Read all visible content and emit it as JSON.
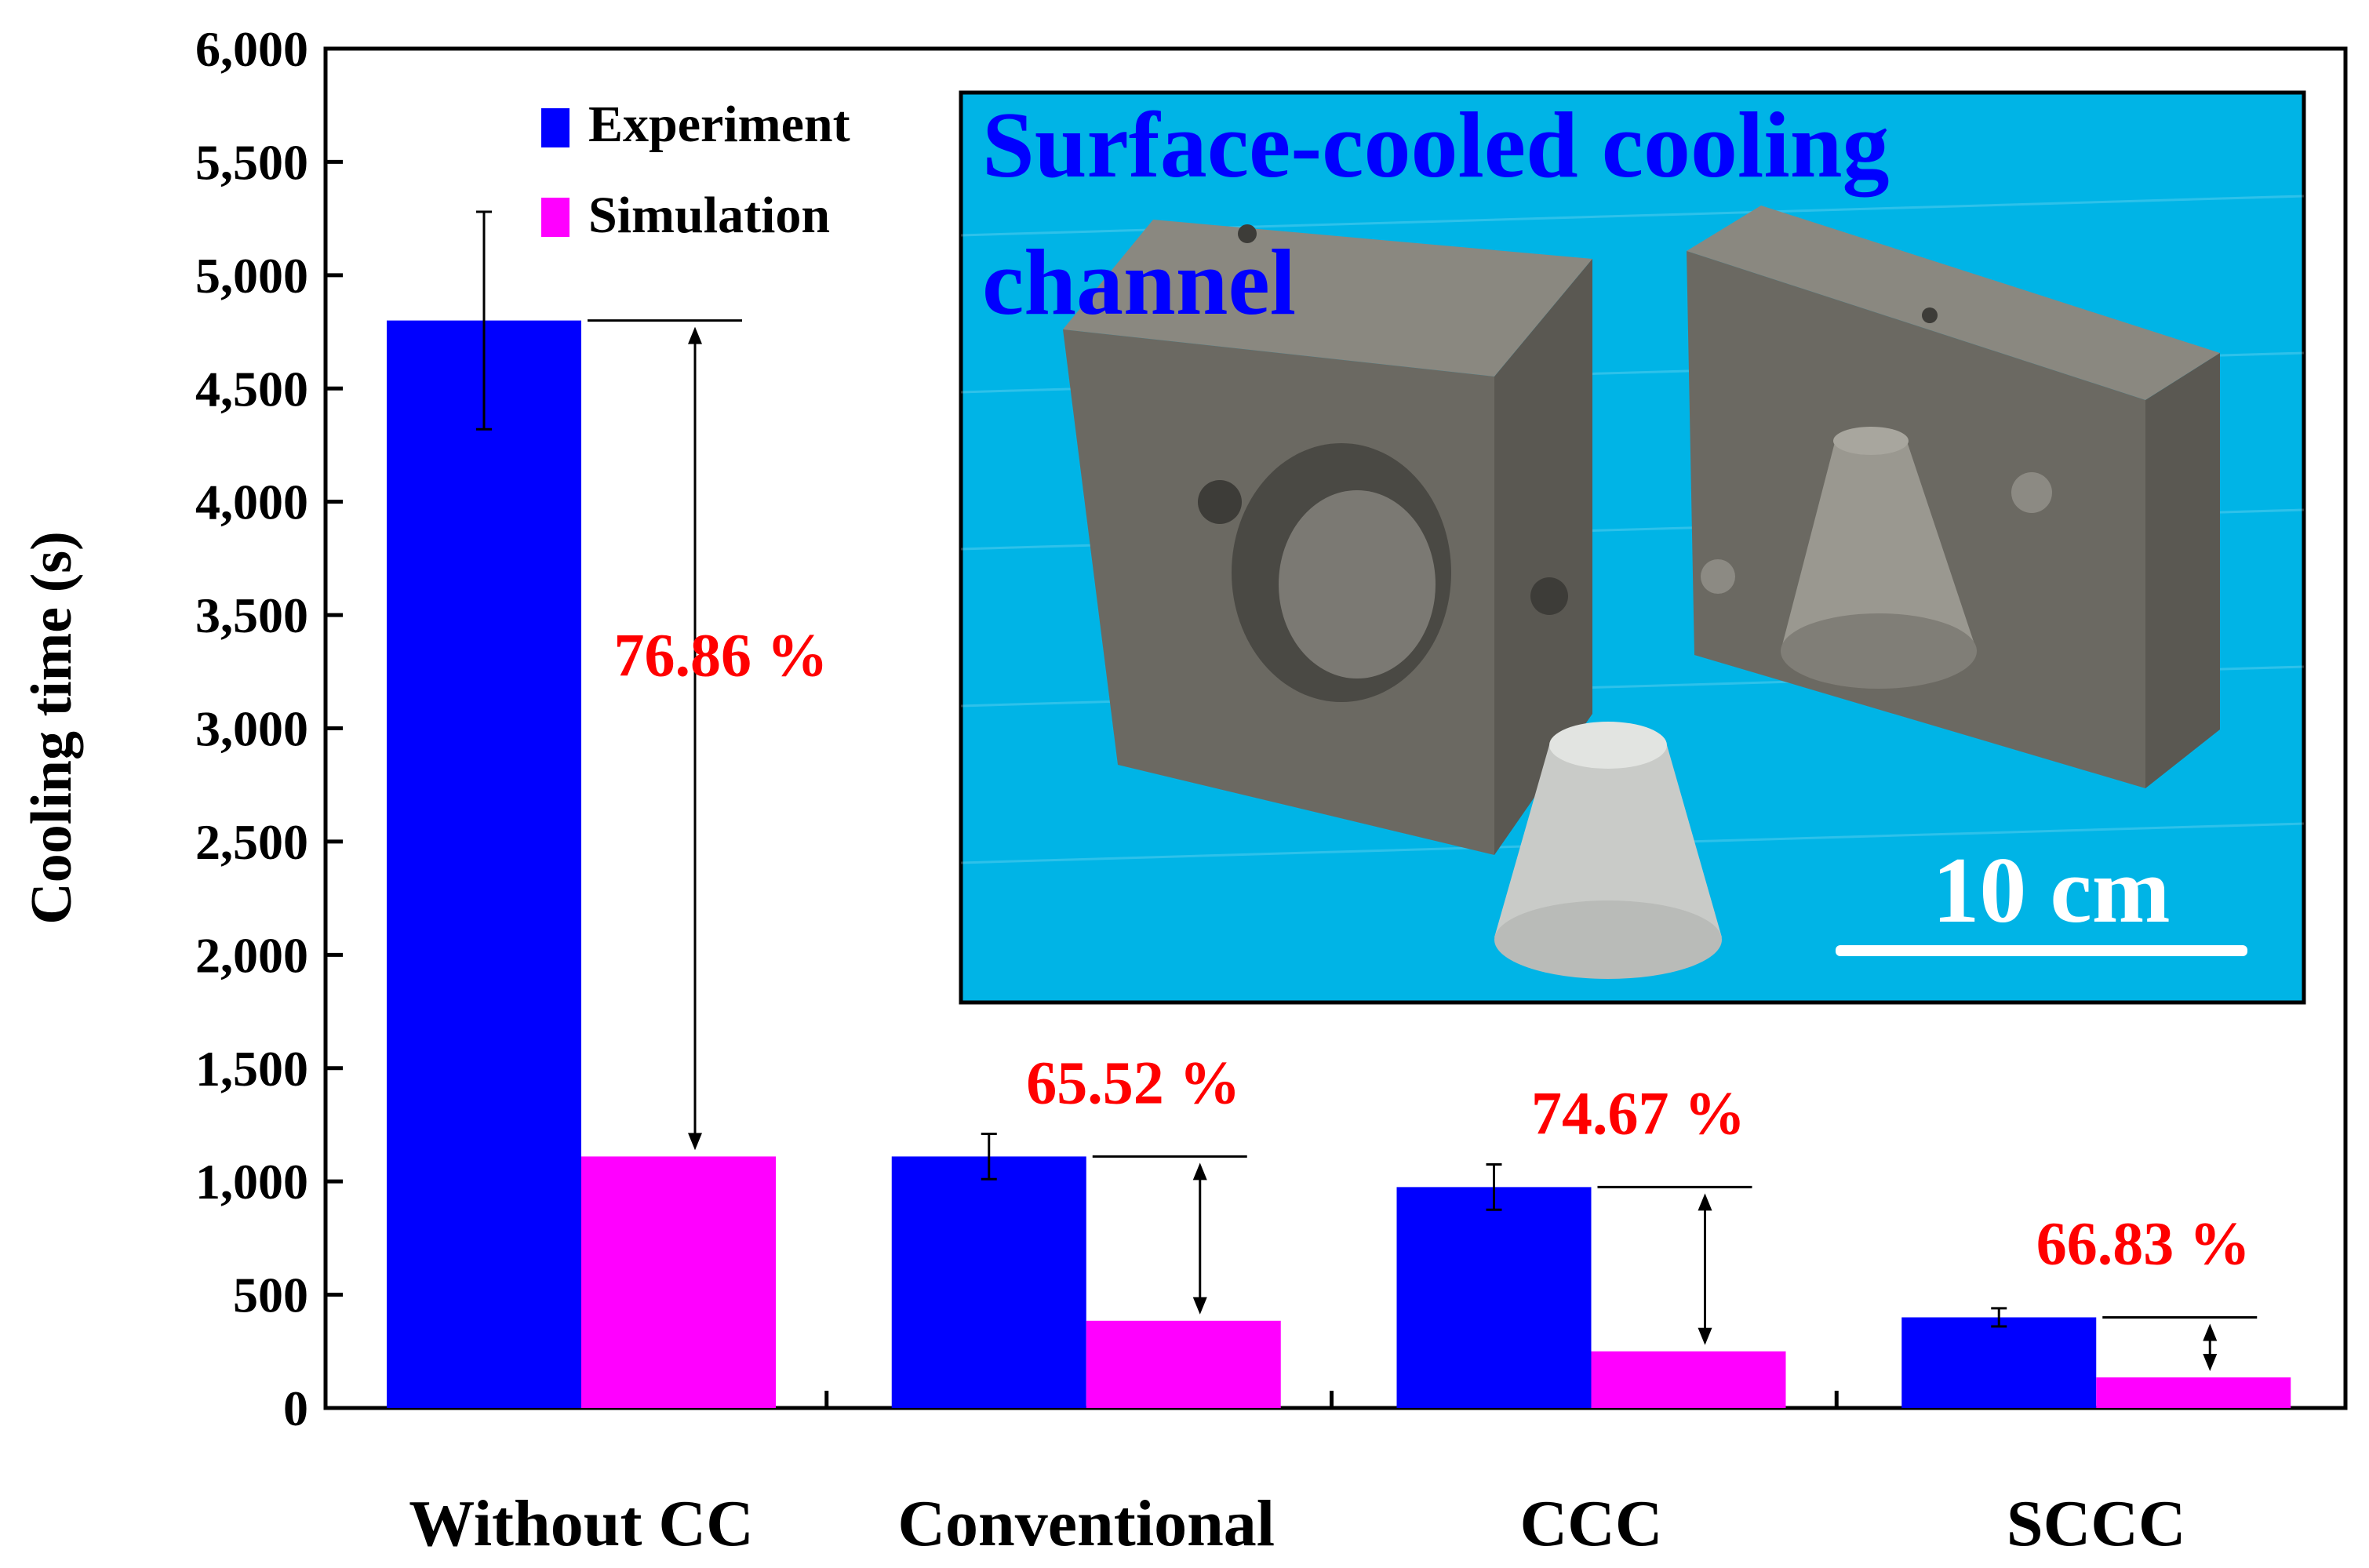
{
  "chart_data": {
    "type": "bar",
    "ylabel": "Cooling time (s)",
    "xlabel": "",
    "ylim": [
      0,
      6000
    ],
    "yticks": [
      0,
      500,
      1000,
      1500,
      2000,
      2500,
      3000,
      3500,
      4000,
      4500,
      5000,
      5500,
      6000
    ],
    "ytick_labels": [
      "0",
      "500",
      "1,000",
      "1,500",
      "2,000",
      "2,500",
      "3,000",
      "3,500",
      "4,000",
      "4,500",
      "5,000",
      "5,500",
      "6,000"
    ],
    "categories": [
      "Without CC",
      "Conventional",
      "CCC",
      "SCCC"
    ],
    "series": [
      {
        "name": "Experiment",
        "color": "#0000ff",
        "values": [
          4800,
          1110,
          975,
          400
        ],
        "error": [
          480,
          100,
          100,
          40
        ]
      },
      {
        "name": "Simulation",
        "color": "#ff00ff",
        "values": [
          1110,
          385,
          250,
          135
        ]
      }
    ],
    "reduction_labels": [
      "76.86 %",
      "65.52 %",
      "74.67 %",
      "66.83 %"
    ],
    "reduction_color": "#ff0000",
    "legend_position": "top-left",
    "grid": false
  },
  "inset": {
    "title_line1": "Surface-cooled cooling",
    "title_line2": "channel",
    "title_color": "#0000ff",
    "background_color": "#00b4e6",
    "scale_label": "10 cm"
  }
}
